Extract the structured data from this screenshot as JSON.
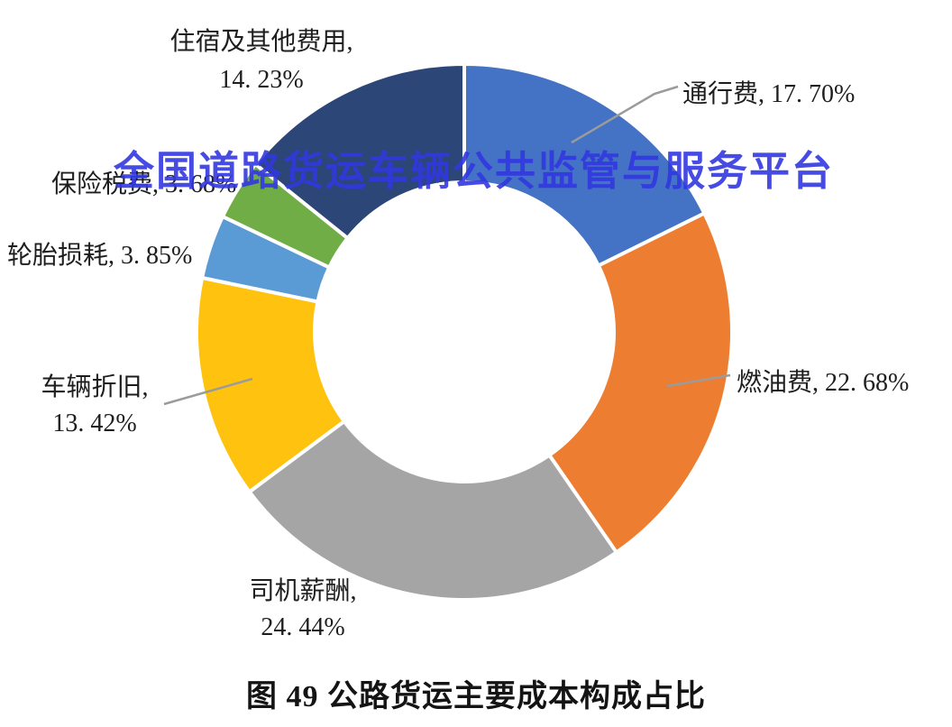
{
  "watermark": {
    "text": "全国道路货运车辆公共监管与服务平台",
    "color": "#3238E0"
  },
  "caption": {
    "text": "图 49 公路货运主要成本构成占比"
  },
  "labels": {
    "accommodation": {
      "line1": "住宿及其他费用,",
      "line2": "14. 23%"
    },
    "toll": {
      "text": "通行费, 17. 70%"
    },
    "fuel": {
      "text": "燃油费, 22. 68%"
    },
    "driver": {
      "line1": "司机薪酬,",
      "line2": "24. 44%"
    },
    "depreciation": {
      "line1": "车辆折旧,",
      "line2": "13. 42%"
    },
    "tire": {
      "text": "轮胎损耗, 3. 85%"
    },
    "insurance": {
      "text": "保险税费, 3. 68%"
    }
  },
  "chart_data": {
    "type": "pie",
    "subtype": "donut",
    "title": "图 49 公路货运主要成本构成占比",
    "start_angle_deg": 0,
    "direction": "clockwise",
    "inner_radius_ratio": 0.56,
    "legend_position": "none",
    "slices": [
      {
        "name": "通行费",
        "value": 17.7,
        "label": "通行费, 17. 70%",
        "color": "#4472C4"
      },
      {
        "name": "燃油费",
        "value": 22.68,
        "label": "燃油费, 22. 68%",
        "color": "#ED7D31"
      },
      {
        "name": "司机薪酬",
        "value": 24.44,
        "label": "司机薪酬, 24. 44%",
        "color": "#A5A5A5"
      },
      {
        "name": "车辆折旧",
        "value": 13.42,
        "label": "车辆折旧, 13. 42%",
        "color": "#FFC20E"
      },
      {
        "name": "轮胎损耗",
        "value": 3.85,
        "label": "轮胎损耗, 3. 85%",
        "color": "#5B9BD5"
      },
      {
        "name": "保险税费",
        "value": 3.68,
        "label": "保险税费, 3. 68%",
        "color": "#70AD47"
      },
      {
        "name": "住宿及其他费用",
        "value": 14.23,
        "label": "住宿及其他费用, 14. 23%",
        "color": "#2B4677"
      }
    ]
  }
}
